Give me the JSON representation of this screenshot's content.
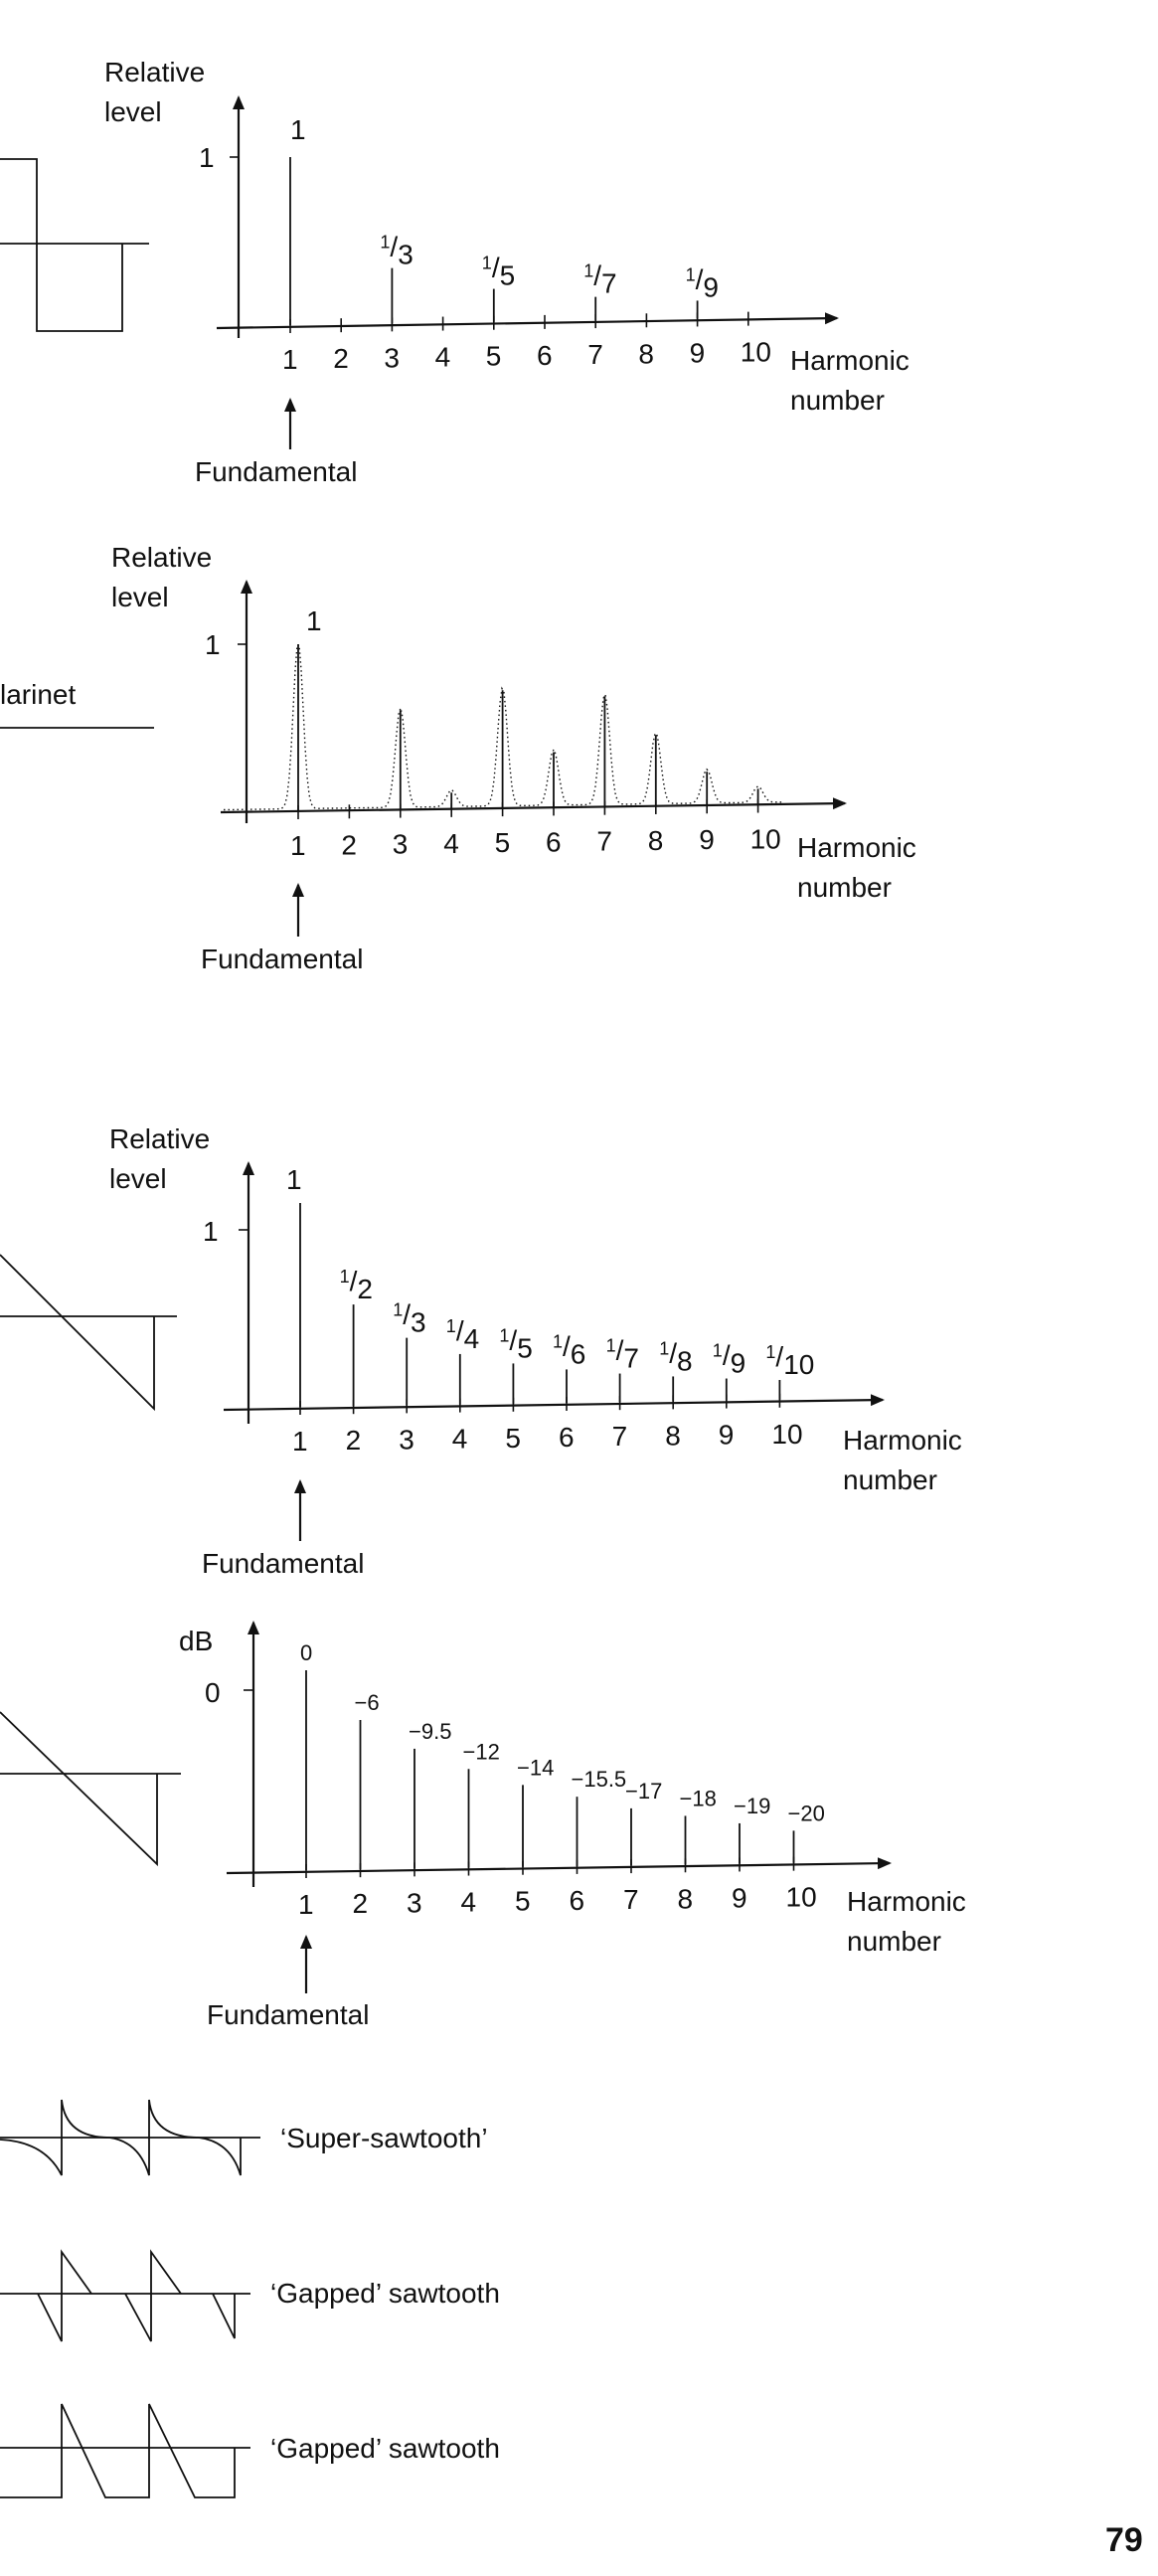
{
  "page_number": "79",
  "charts": [
    {
      "id": "square",
      "y_label_line1": "Relative",
      "y_label_line2": "level",
      "y_tick": "1",
      "x_ticks": [
        "1",
        "2",
        "3",
        "4",
        "5",
        "6",
        "7",
        "8",
        "9",
        "10"
      ],
      "x_label_line1": "Harmonic",
      "x_label_line2": "number",
      "fundamental": "Fundamental",
      "bar_labels": [
        "1",
        "1/3",
        "1/5",
        "1/7",
        "1/9"
      ]
    },
    {
      "id": "clarinet",
      "y_label_line1": "Relative",
      "y_label_line2": "level",
      "y_tick": "1",
      "x_ticks": [
        "1",
        "2",
        "3",
        "4",
        "5",
        "6",
        "7",
        "8",
        "9",
        "10"
      ],
      "x_label_line1": "Harmonic",
      "x_label_line2": "number",
      "fundamental": "Fundamental",
      "peak_label": "1",
      "waveform_label": "larinet"
    },
    {
      "id": "sawtooth",
      "y_label_line1": "Relative",
      "y_label_line2": "level",
      "y_tick": "1",
      "x_ticks": [
        "1",
        "2",
        "3",
        "4",
        "5",
        "6",
        "7",
        "8",
        "9",
        "10"
      ],
      "x_label_line1": "Harmonic",
      "x_label_line2": "number",
      "fundamental": "Fundamental",
      "bar_labels": [
        "1",
        "1/2",
        "1/3",
        "1/4",
        "1/5",
        "1/6",
        "1/7",
        "1/8",
        "1/9",
        "1/10"
      ]
    },
    {
      "id": "sawtooth_db",
      "y_label_line1": "dB",
      "y_tick": "0",
      "x_ticks": [
        "1",
        "2",
        "3",
        "4",
        "5",
        "6",
        "7",
        "8",
        "9",
        "10"
      ],
      "x_label_line1": "Harmonic",
      "x_label_line2": "number",
      "fundamental": "Fundamental",
      "bar_labels": [
        "0",
        "−6",
        "−9.5",
        "−12",
        "−14",
        "−15.5",
        "−17",
        "−18",
        "−19",
        "−20"
      ]
    }
  ],
  "chart_data": [
    {
      "type": "bar",
      "categories": [
        "1",
        "2",
        "3",
        "4",
        "5",
        "6",
        "7",
        "8",
        "9",
        "10"
      ],
      "values": [
        1,
        0,
        0.333,
        0,
        0.2,
        0,
        0.143,
        0,
        0.111,
        0
      ],
      "ylabel": "Relative level",
      "xlabel": "Harmonic number",
      "ylim": [
        0,
        1
      ]
    },
    {
      "type": "line",
      "x": [
        1,
        2,
        3,
        4,
        5,
        6,
        7,
        8,
        9,
        10
      ],
      "y": [
        1.0,
        0.0,
        0.6,
        0.1,
        0.72,
        0.34,
        0.68,
        0.44,
        0.21,
        0.1
      ],
      "ylabel": "Relative level",
      "xlabel": "Harmonic number",
      "ylim": [
        0,
        1
      ]
    },
    {
      "type": "bar",
      "categories": [
        "1",
        "2",
        "3",
        "4",
        "5",
        "6",
        "7",
        "8",
        "9",
        "10"
      ],
      "values": [
        1,
        0.5,
        0.333,
        0.25,
        0.2,
        0.167,
        0.143,
        0.125,
        0.111,
        0.1
      ],
      "ylabel": "Relative level",
      "xlabel": "Harmonic number",
      "ylim": [
        0,
        1
      ]
    },
    {
      "type": "bar",
      "categories": [
        "1",
        "2",
        "3",
        "4",
        "5",
        "6",
        "7",
        "8",
        "9",
        "10"
      ],
      "values": [
        0,
        -6,
        -9.5,
        -12,
        -14,
        -15.5,
        -17,
        -18,
        -19,
        -20
      ],
      "ylabel": "dB",
      "xlabel": "Harmonic number",
      "ylim": [
        -24,
        0
      ]
    }
  ],
  "waveform_captions": [
    "‘Super-sawtooth’",
    "‘Gapped’ sawtooth",
    "‘Gapped’ sawtooth"
  ]
}
